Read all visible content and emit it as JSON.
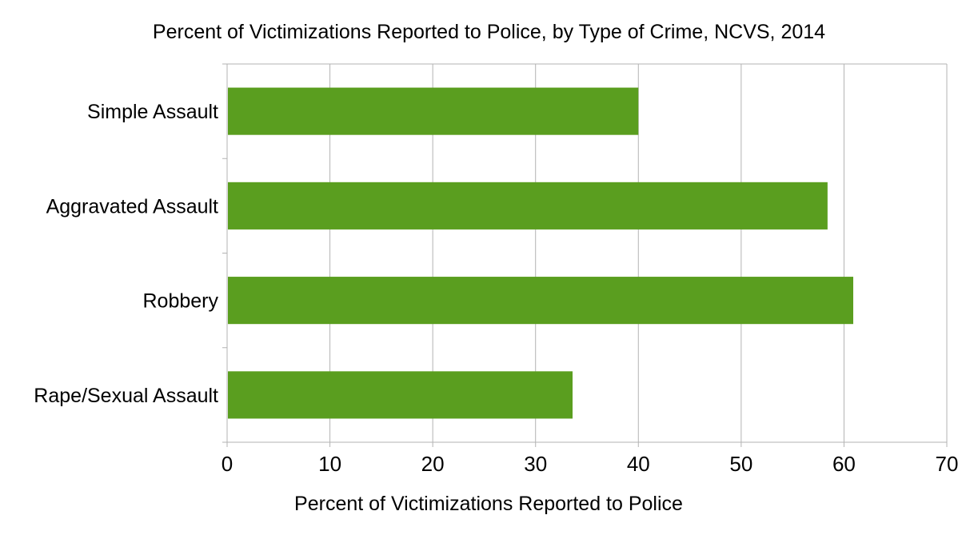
{
  "chart_data": {
    "type": "bar",
    "orientation": "horizontal",
    "title": "Percent of Victimizations Reported to Police, by Type of Crime, NCVS, 2014",
    "xlabel": "Percent of Victimizations Reported to Police",
    "ylabel": "",
    "categories": [
      "Simple Assault",
      "Aggravated Assault",
      "Robbery",
      "Rape/Sexual Assault"
    ],
    "values": [
      40,
      58.4,
      60.9,
      33.6
    ],
    "xlim": [
      0,
      70
    ],
    "xticks": [
      0,
      10,
      20,
      30,
      40,
      50,
      60,
      70
    ],
    "grid": true,
    "legend": "none",
    "bar_color": "#5a9e1f",
    "grid_color": "#b3b3b3"
  }
}
